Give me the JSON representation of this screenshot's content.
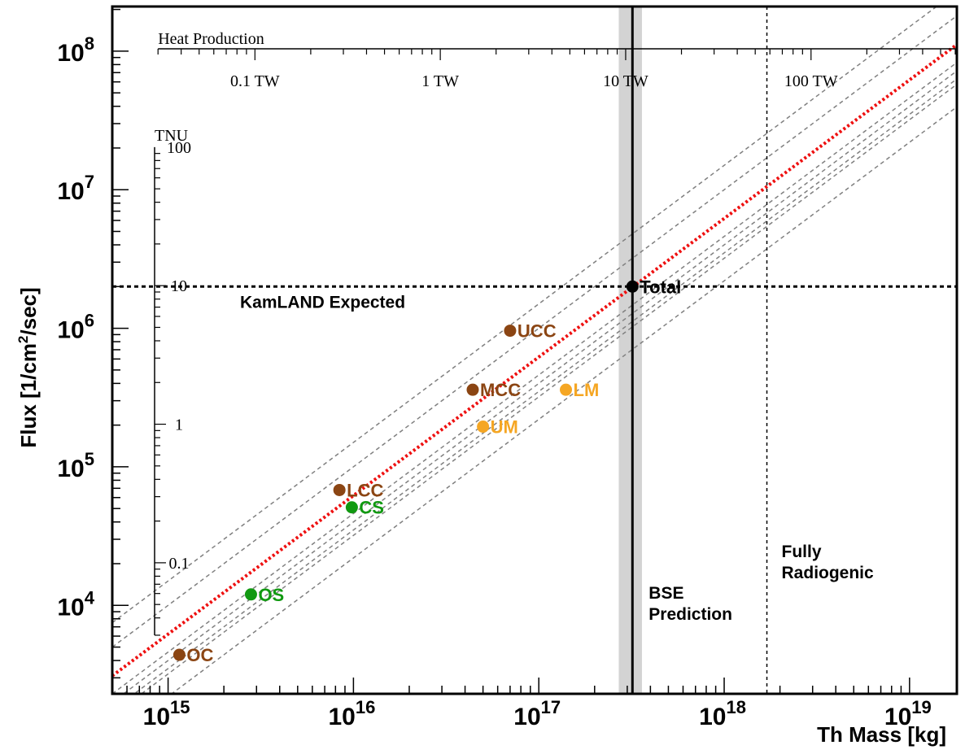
{
  "chart_data": {
    "type": "scatter",
    "xlabel": "Th Mass [kg]",
    "ylabel_main": "Flux [1/cm",
    "ylabel_sup": "2",
    "ylabel_end": "/sec]",
    "x_scale": "log",
    "y_scale": "log",
    "xlim": [
      500000000000000.0,
      1.8e+19
    ],
    "ylim": [
      2300.0,
      210000000.0
    ],
    "x_ticks": [
      {
        "value": 1000000000000000.0,
        "base": "10",
        "exp": "15"
      },
      {
        "value": 1e+16,
        "base": "10",
        "exp": "16"
      },
      {
        "value": 1e+17,
        "base": "10",
        "exp": "17"
      },
      {
        "value": 1e+18,
        "base": "10",
        "exp": "18"
      },
      {
        "value": 1e+19,
        "base": "10",
        "exp": "19"
      }
    ],
    "y_ticks": [
      {
        "value": 10000.0,
        "base": "10",
        "exp": "4"
      },
      {
        "value": 100000.0,
        "base": "10",
        "exp": "5"
      },
      {
        "value": 1000000.0,
        "base": "10",
        "exp": "6"
      },
      {
        "value": 10000000.0,
        "base": "10",
        "exp": "7"
      },
      {
        "value": 100000000.0,
        "base": "10",
        "exp": "8"
      }
    ],
    "points": [
      {
        "label": "OC",
        "x": 1150000000000000.0,
        "y": 4400.0,
        "color": "#8b4513"
      },
      {
        "label": "OS",
        "x": 2800000000000000.0,
        "y": 12000.0,
        "color": "#119911"
      },
      {
        "label": "LCC",
        "x": 8400000000000000.0,
        "y": 68000.0,
        "color": "#8b4513"
      },
      {
        "label": "CS",
        "x": 9800000000000000.0,
        "y": 51000.0,
        "color": "#119911"
      },
      {
        "label": "MCC",
        "x": 4.4e+16,
        "y": 360000.0,
        "color": "#8b4513"
      },
      {
        "label": "UCC",
        "x": 7e+16,
        "y": 960000.0,
        "color": "#8b4513"
      },
      {
        "label": "UM",
        "x": 5e+16,
        "y": 195000.0,
        "color": "#f5a623"
      },
      {
        "label": "LM",
        "x": 1.4e+17,
        "y": 360000.0,
        "color": "#f5a623"
      },
      {
        "label": "Total",
        "x": 3.2e+17,
        "y": 2000000.0,
        "color": "#000000"
      }
    ],
    "red_line_factor": 6.2e-12,
    "gray_line_factors": [
      1.5e-11,
      1e-11,
      4.6e-12,
      4e-12,
      3.5e-12,
      3.2e-12,
      2.2e-12
    ],
    "kamland_flux": 2000000.0,
    "kamland_label": "KamLAND Expected",
    "bse_mass": 3.2e+17,
    "bse_band": [
      2.7e+17,
      3.6e+17
    ],
    "bse_label_1": "BSE",
    "bse_label_2": "Prediction",
    "radiogenic_mass": 1.7e+18,
    "radiogenic_label_1": "Fully",
    "radiogenic_label_2": "Radiogenic",
    "heat_axis": {
      "title": "Heat Production",
      "tw_per_kg": 3.4e-17,
      "ticks": [
        {
          "tw": 0.1,
          "label": "0.1 TW"
        },
        {
          "tw": 1,
          "label": "1 TW"
        },
        {
          "tw": 10,
          "label": "10 TW"
        },
        {
          "tw": 100,
          "label": "100 TW"
        }
      ]
    },
    "tnu_axis": {
      "title": "TNU",
      "flux_per_tnu": 203000.0,
      "range": [
        0.03,
        100
      ],
      "ticks": [
        {
          "value": 0.1,
          "label": "0.1"
        },
        {
          "value": 1,
          "label": "1"
        },
        {
          "value": 10,
          "label": "10"
        },
        {
          "value": 100,
          "label": "100"
        }
      ]
    }
  }
}
